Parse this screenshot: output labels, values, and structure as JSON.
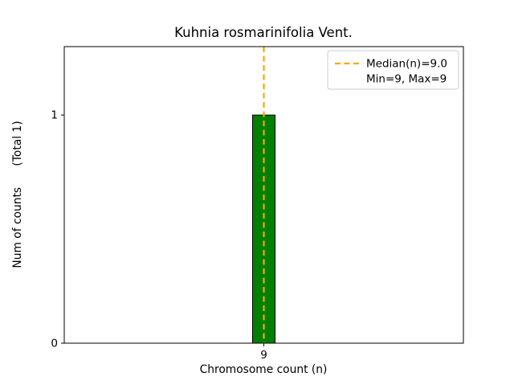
{
  "chart_data": {
    "type": "bar",
    "title": "Kuhnia rosmarinifolia Vent.",
    "xlabel": "Chromosome count (n)",
    "ylabel": "Num of counts      (Total 1)",
    "categories": [
      9
    ],
    "values": [
      1
    ],
    "total_counts": 1,
    "yticks": [
      0,
      1
    ],
    "ylim": [
      0,
      1.3
    ],
    "bar_color": "#008000",
    "bar_edge_color": "#000000",
    "median_line": {
      "x": 9,
      "label": "Median(n)=9.0",
      "color": "#FFA500",
      "style": "dashed"
    },
    "legend": {
      "entries": [
        "Median(n)=9.0",
        "Min=9, Max=9"
      ],
      "position": "upper right"
    },
    "grid": false,
    "background": "#ffffff"
  }
}
